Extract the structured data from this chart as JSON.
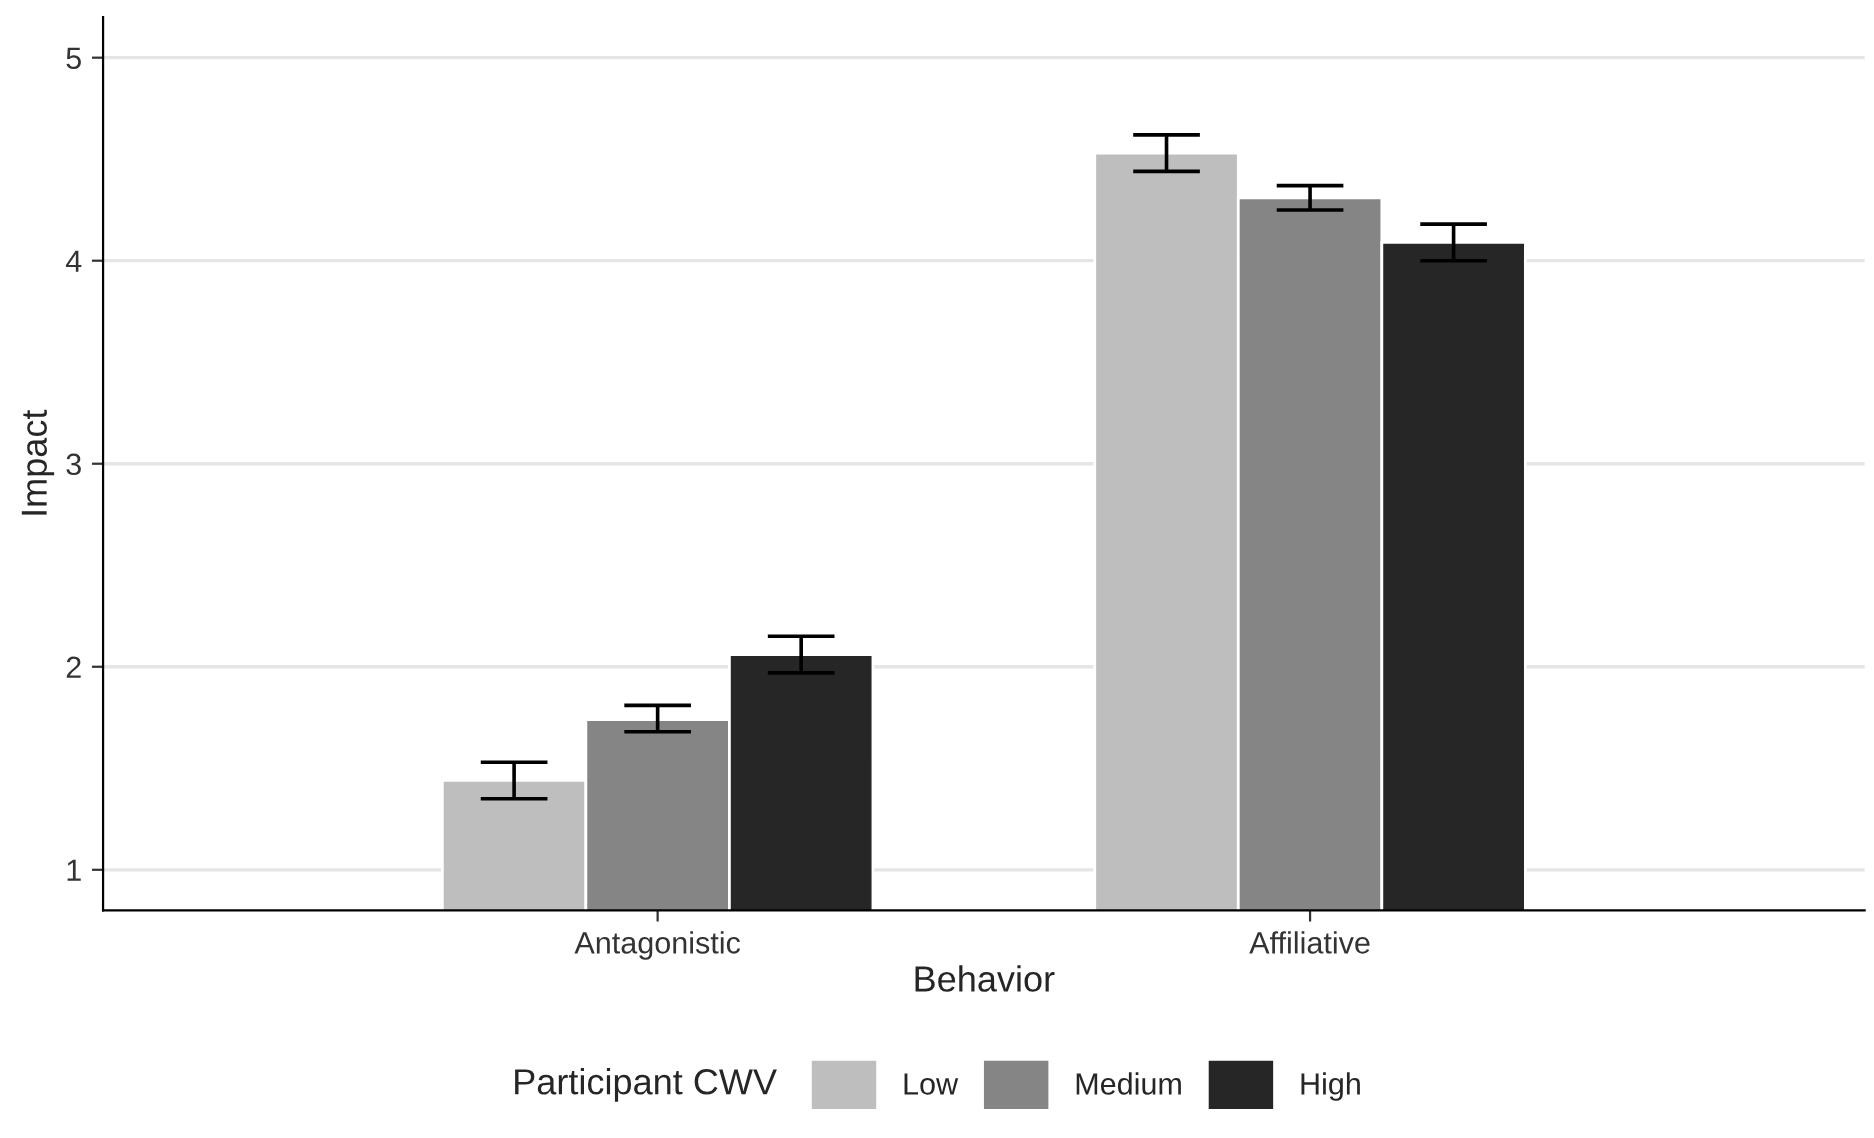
{
  "chart_data": {
    "type": "bar",
    "xlabel": "Behavior",
    "ylabel": "Impact",
    "legend_title": "Participant CWV",
    "categories": [
      "Antagonistic",
      "Affiliative"
    ],
    "series": [
      {
        "name": "Low",
        "color": "#bebebe",
        "values": [
          1.44,
          4.53
        ],
        "errors": [
          [
            1.35,
            1.53
          ],
          [
            4.44,
            4.62
          ]
        ]
      },
      {
        "name": "Medium",
        "color": "#858585",
        "values": [
          1.74,
          4.31
        ],
        "errors": [
          [
            1.68,
            1.81
          ],
          [
            4.25,
            4.37
          ]
        ]
      },
      {
        "name": "High",
        "color": "#262626",
        "values": [
          2.06,
          4.09
        ],
        "errors": [
          [
            1.97,
            2.15
          ],
          [
            4.0,
            4.18
          ]
        ]
      }
    ],
    "ylim": [
      0.8,
      5.2
    ],
    "yticks": [
      1,
      2,
      3,
      4,
      5
    ],
    "grid": "y",
    "legend": "bottom"
  }
}
